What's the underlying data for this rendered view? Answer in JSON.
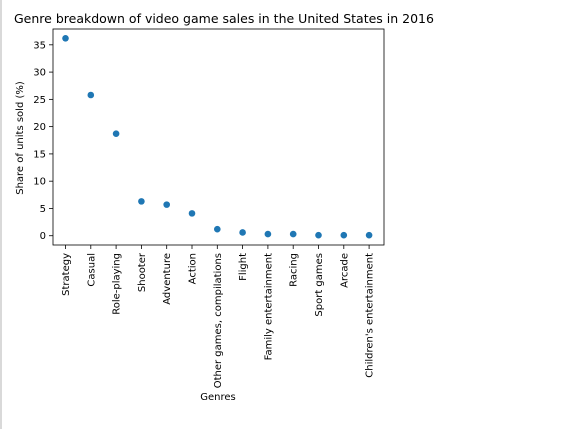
{
  "chart_data": {
    "type": "scatter",
    "title": "Genre breakdown of video game sales in the United States in 2016",
    "xlabel": "Genres",
    "ylabel": "Share of units sold (%)",
    "categories": [
      "Strategy",
      "Casual",
      "Role-playing",
      "Shooter",
      "Adventure",
      "Action",
      "Other games, compilations",
      "Flight",
      "Family entertainment",
      "Racing",
      "Sport games",
      "Arcade",
      "Children's entertainment"
    ],
    "values": [
      36.2,
      25.8,
      18.7,
      6.3,
      5.7,
      4.1,
      1.2,
      0.6,
      0.3,
      0.3,
      0.1,
      0.1,
      0.1
    ],
    "ylim": [
      -1.7,
      37.9
    ],
    "yticks": [
      0,
      5,
      10,
      15,
      20,
      25,
      30,
      35
    ],
    "grid": false,
    "legend": "none",
    "marker_color": "#1f77b4"
  }
}
